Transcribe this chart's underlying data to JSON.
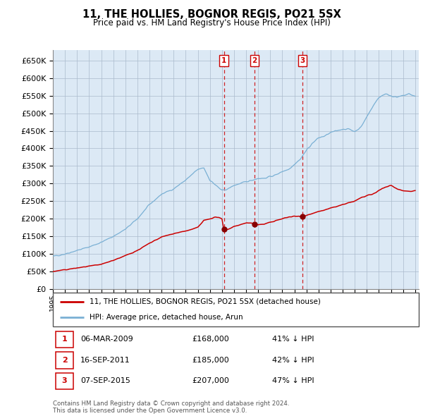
{
  "title": "11, THE HOLLIES, BOGNOR REGIS, PO21 5SX",
  "subtitle": "Price paid vs. HM Land Registry's House Price Index (HPI)",
  "ylim": [
    0,
    680000
  ],
  "yticks": [
    0,
    50000,
    100000,
    150000,
    200000,
    250000,
    300000,
    350000,
    400000,
    450000,
    500000,
    550000,
    600000,
    650000
  ],
  "xlim_start": 1995.0,
  "xlim_end": 2025.3,
  "hpi_color": "#7ab0d4",
  "price_color": "#cc0000",
  "background_color": "#dce9f5",
  "grid_color": "#aabbcc",
  "transactions": [
    {
      "num": 1,
      "date_x": 2009.17,
      "price": 168000,
      "label": "06-MAR-2009",
      "amount": "£168,000",
      "pct": "41% ↓ HPI"
    },
    {
      "num": 2,
      "date_x": 2011.71,
      "price": 185000,
      "label": "16-SEP-2011",
      "amount": "£185,000",
      "pct": "42% ↓ HPI"
    },
    {
      "num": 3,
      "date_x": 2015.68,
      "price": 207000,
      "label": "07-SEP-2015",
      "amount": "£207,000",
      "pct": "47% ↓ HPI"
    }
  ],
  "legend_house_label": "11, THE HOLLIES, BOGNOR REGIS, PO21 5SX (detached house)",
  "legend_hpi_label": "HPI: Average price, detached house, Arun",
  "footer": "Contains HM Land Registry data © Crown copyright and database right 2024.\nThis data is licensed under the Open Government Licence v3.0.",
  "hpi_anchors_x": [
    1995,
    1996,
    1997,
    1998,
    1999,
    2000,
    2001,
    2002,
    2003,
    2004,
    2005,
    2006,
    2007,
    2007.5,
    2008,
    2008.5,
    2009.0,
    2009.5,
    2010,
    2010.5,
    2011,
    2011.5,
    2012,
    2012.5,
    2013,
    2013.5,
    2014,
    2014.5,
    2015,
    2015.5,
    2016,
    2016.5,
    2017,
    2017.5,
    2018,
    2018.5,
    2019,
    2019.5,
    2020,
    2020.5,
    2021,
    2021.5,
    2022,
    2022.5,
    2023,
    2023.5,
    2024,
    2024.5,
    2025
  ],
  "hpi_anchors_y": [
    93000,
    100000,
    110000,
    120000,
    133000,
    150000,
    170000,
    200000,
    240000,
    270000,
    285000,
    310000,
    340000,
    345000,
    310000,
    295000,
    280000,
    285000,
    295000,
    300000,
    305000,
    310000,
    315000,
    315000,
    320000,
    325000,
    335000,
    340000,
    355000,
    370000,
    395000,
    415000,
    430000,
    435000,
    445000,
    450000,
    455000,
    455000,
    448000,
    460000,
    490000,
    520000,
    545000,
    555000,
    550000,
    545000,
    550000,
    555000,
    548000
  ],
  "price_anchors_x": [
    1995,
    1996,
    1997,
    1998,
    1999,
    2000,
    2001,
    2002,
    2003,
    2004,
    2005,
    2006,
    2007,
    2007.5,
    2008,
    2008.5,
    2009.0,
    2009.17,
    2009.5,
    2010,
    2010.5,
    2011,
    2011.5,
    2011.71,
    2012,
    2012.5,
    2013,
    2013.5,
    2014,
    2014.5,
    2015,
    2015.5,
    2015.68,
    2016,
    2016.5,
    2017,
    2017.5,
    2018,
    2018.5,
    2019,
    2019.5,
    2020,
    2020.5,
    2021,
    2021.5,
    2022,
    2022.5,
    2023,
    2023.5,
    2024,
    2024.5,
    2025
  ],
  "price_anchors_y": [
    50000,
    55000,
    60000,
    65000,
    70000,
    82000,
    95000,
    110000,
    130000,
    148000,
    158000,
    165000,
    175000,
    195000,
    200000,
    205000,
    200000,
    168000,
    170000,
    178000,
    183000,
    188000,
    187000,
    185000,
    183000,
    185000,
    190000,
    195000,
    200000,
    205000,
    207000,
    207000,
    207000,
    210000,
    215000,
    220000,
    225000,
    230000,
    235000,
    240000,
    245000,
    250000,
    260000,
    265000,
    270000,
    280000,
    290000,
    295000,
    285000,
    280000,
    278000,
    280000
  ]
}
